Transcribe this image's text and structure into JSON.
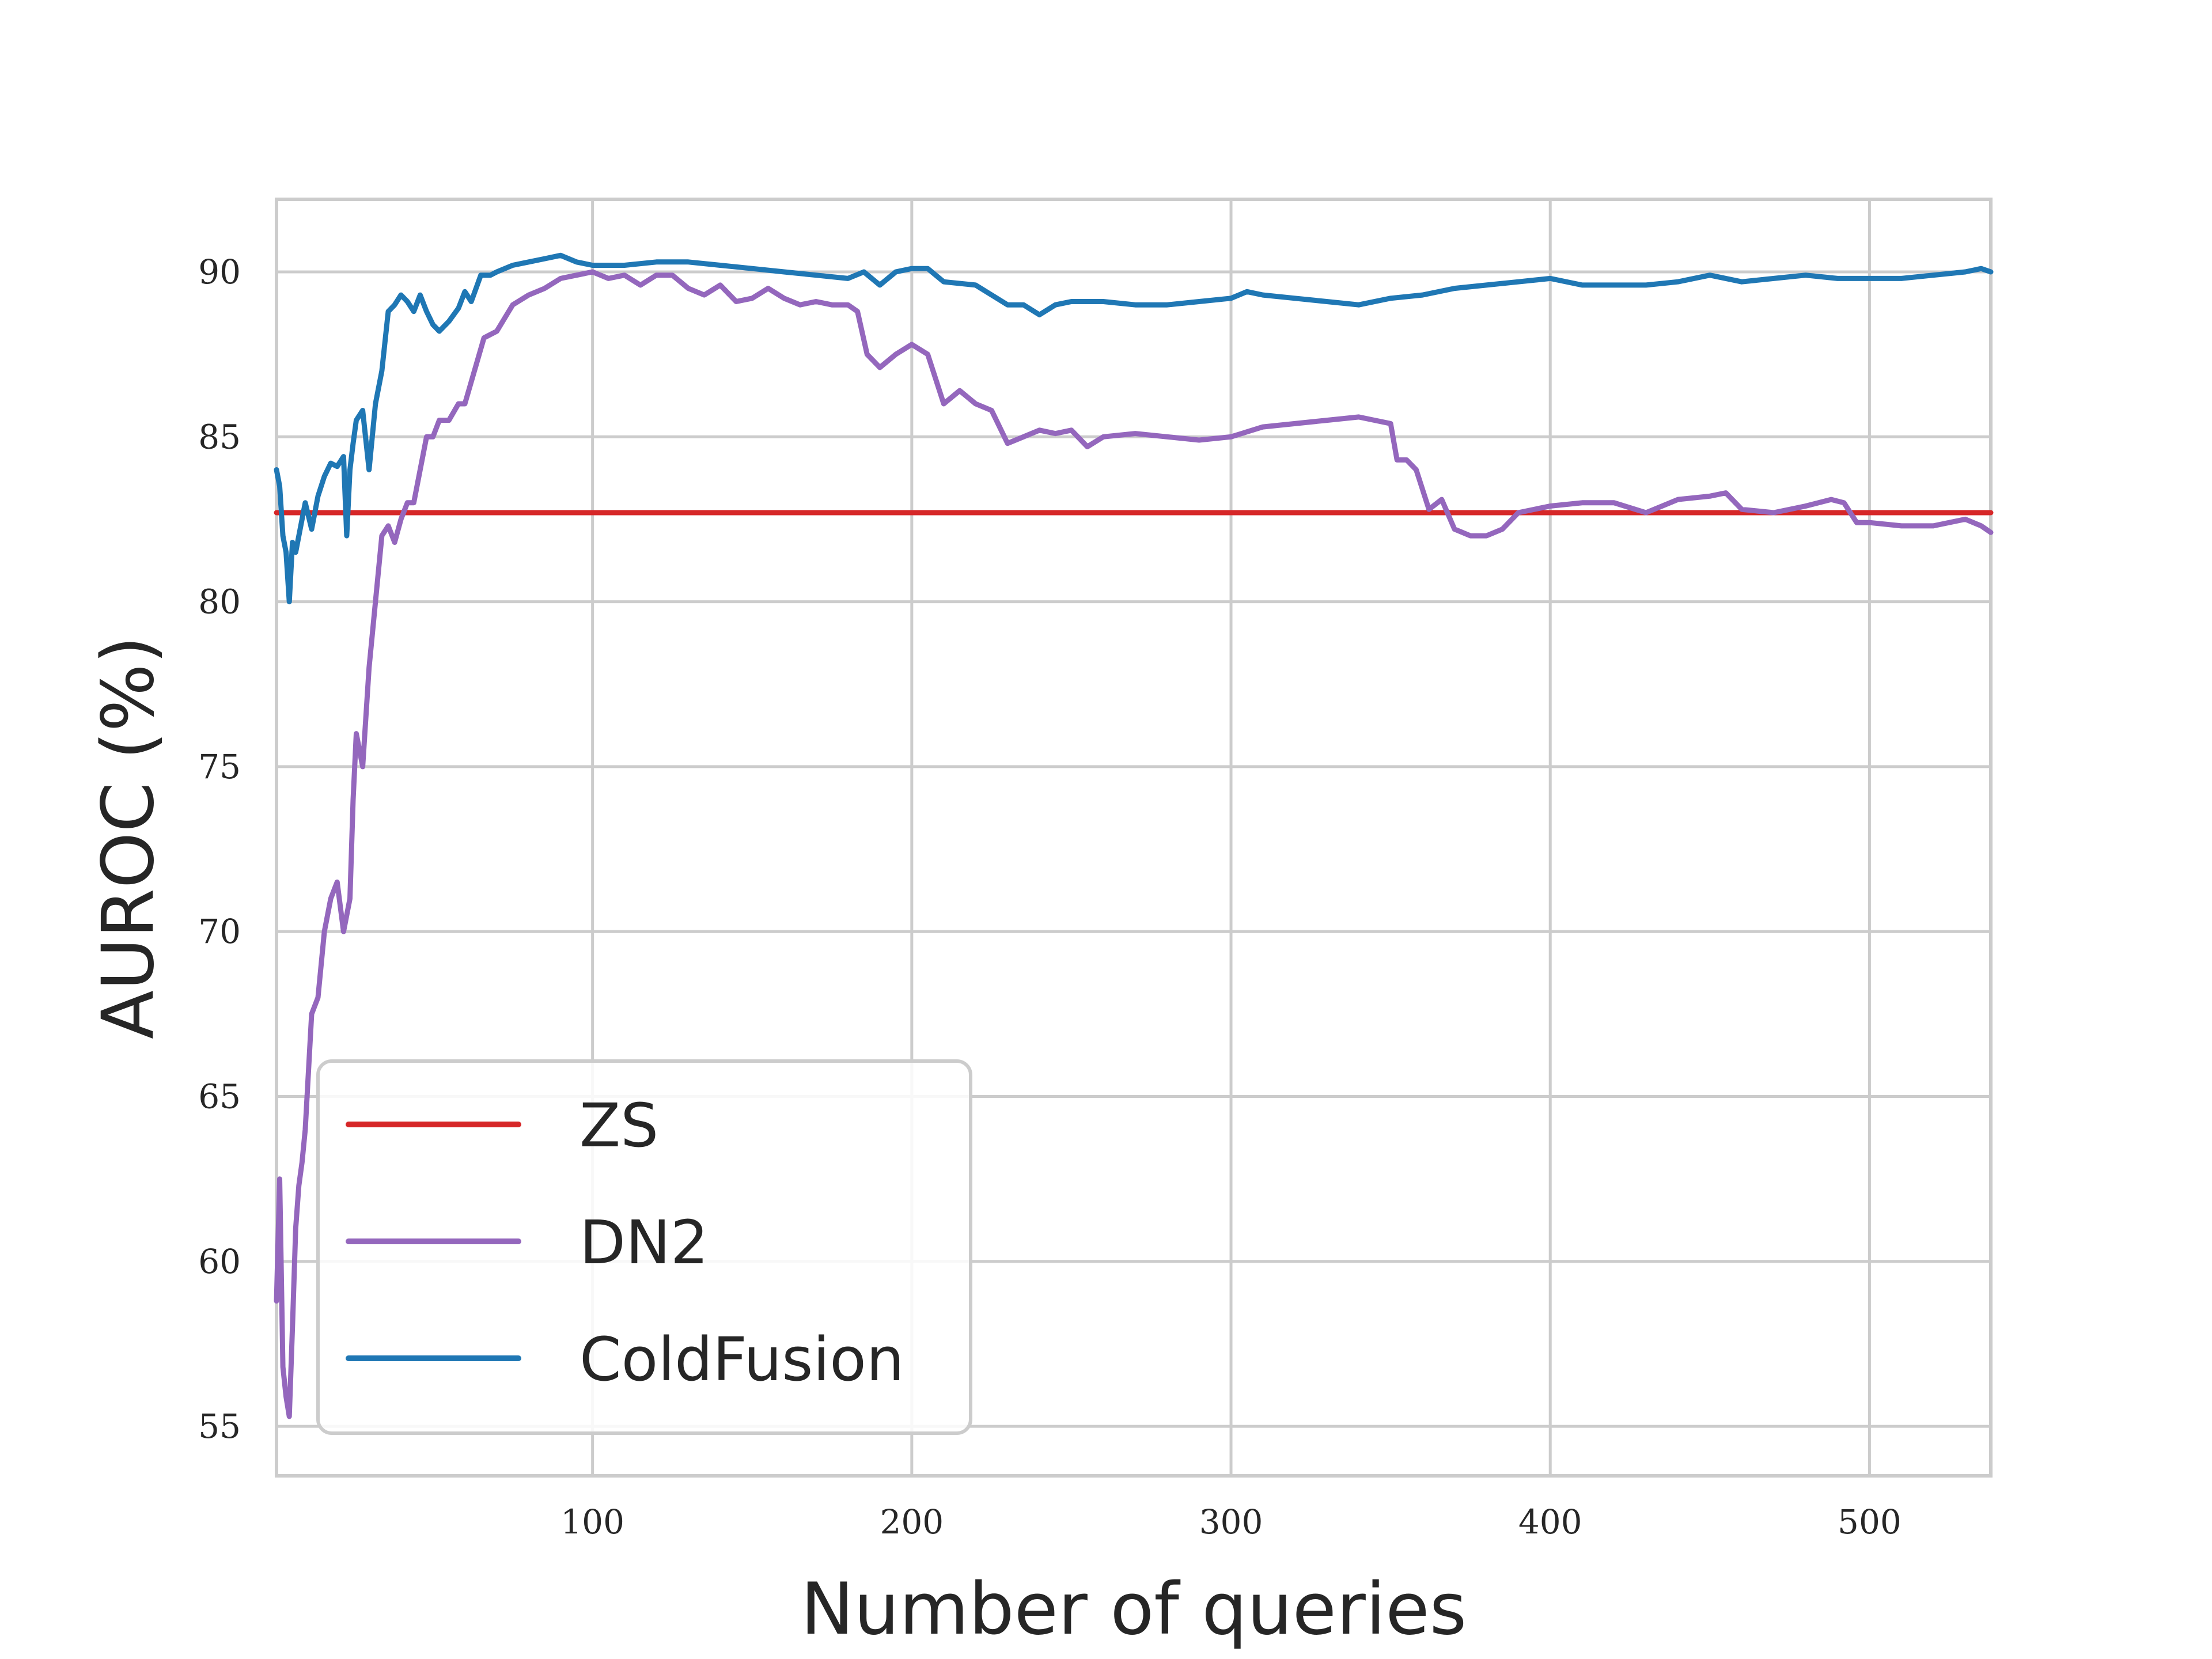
{
  "chart_data": {
    "type": "line",
    "title": "",
    "xlabel": "Number of queries",
    "ylabel": "AUROC (%)",
    "xlim": [
      1,
      538
    ],
    "ylim": [
      53.5,
      92.2
    ],
    "xticks": [
      100,
      200,
      300,
      400,
      500
    ],
    "yticks": [
      55,
      60,
      65,
      70,
      75,
      80,
      85,
      90
    ],
    "grid": true,
    "legend_position": "lower-left",
    "series": [
      {
        "name": "ZS",
        "color": "#d62728",
        "x": [
          1,
          538
        ],
        "y": [
          82.7,
          82.7
        ]
      },
      {
        "name": "DN2",
        "color": "#9467bd",
        "x": [
          1,
          2,
          3,
          4,
          5,
          6,
          7,
          8,
          9,
          10,
          12,
          14,
          16,
          18,
          20,
          22,
          24,
          25,
          26,
          28,
          30,
          32,
          34,
          36,
          38,
          40,
          42,
          44,
          46,
          48,
          50,
          52,
          55,
          58,
          60,
          63,
          66,
          70,
          75,
          80,
          85,
          90,
          95,
          100,
          105,
          110,
          115,
          120,
          125,
          130,
          135,
          140,
          145,
          150,
          155,
          160,
          165,
          170,
          175,
          180,
          183,
          186,
          190,
          195,
          200,
          205,
          210,
          215,
          220,
          225,
          230,
          235,
          240,
          245,
          250,
          255,
          260,
          270,
          280,
          290,
          300,
          310,
          320,
          330,
          340,
          345,
          350,
          352,
          355,
          358,
          362,
          366,
          370,
          375,
          380,
          385,
          390,
          400,
          410,
          420,
          430,
          440,
          450,
          455,
          460,
          470,
          480,
          488,
          492,
          496,
          500,
          510,
          520,
          530,
          535,
          538
        ],
        "y": [
          58.8,
          62.5,
          56.8,
          55.9,
          55.3,
          58,
          61,
          62.3,
          63,
          64,
          67.5,
          68,
          70,
          71,
          71.5,
          70,
          71,
          74,
          76,
          75,
          78,
          80,
          82,
          82.3,
          81.8,
          82.5,
          83,
          83,
          84,
          85,
          85,
          85.5,
          85.5,
          86,
          86,
          87,
          88,
          88.2,
          89,
          89.3,
          89.5,
          89.8,
          89.9,
          90,
          89.8,
          89.9,
          89.6,
          89.9,
          89.9,
          89.5,
          89.3,
          89.6,
          89.1,
          89.2,
          89.5,
          89.2,
          89,
          89.1,
          89,
          89,
          88.8,
          87.5,
          87.1,
          87.5,
          87.8,
          87.5,
          86,
          86.4,
          86,
          85.8,
          84.8,
          85,
          85.2,
          85.1,
          85.2,
          84.7,
          85,
          85.1,
          85,
          84.9,
          85,
          85.3,
          85.4,
          85.5,
          85.6,
          85.5,
          85.4,
          84.3,
          84.3,
          84,
          82.8,
          83.1,
          82.2,
          82,
          82,
          82.2,
          82.7,
          82.9,
          83,
          83,
          82.7,
          83.1,
          83.2,
          83.3,
          82.8,
          82.7,
          82.9,
          83.1,
          83,
          82.4,
          82.4,
          82.3,
          82.3,
          82.5,
          82.3,
          82.1
        ]
      },
      {
        "name": "ColdFusion",
        "color": "#1f77b4",
        "x": [
          1,
          2,
          3,
          4,
          5,
          6,
          7,
          8,
          10,
          12,
          14,
          16,
          18,
          20,
          22,
          23,
          24,
          25,
          26,
          28,
          30,
          32,
          34,
          36,
          38,
          40,
          42,
          44,
          46,
          48,
          50,
          52,
          55,
          58,
          60,
          62,
          65,
          68,
          70,
          75,
          80,
          85,
          90,
          95,
          100,
          110,
          120,
          130,
          140,
          150,
          160,
          170,
          180,
          185,
          190,
          195,
          200,
          205,
          210,
          220,
          225,
          230,
          235,
          240,
          245,
          250,
          260,
          270,
          280,
          290,
          300,
          305,
          310,
          320,
          330,
          340,
          350,
          360,
          370,
          380,
          390,
          400,
          410,
          420,
          430,
          440,
          450,
          460,
          470,
          480,
          490,
          500,
          510,
          520,
          530,
          535,
          538
        ],
        "y": [
          84,
          83.5,
          82,
          81.5,
          80,
          81.8,
          81.5,
          82,
          83,
          82.2,
          83.2,
          83.8,
          84.2,
          84.1,
          84.4,
          82,
          84,
          84.8,
          85.5,
          85.8,
          84,
          86,
          87,
          88.8,
          89,
          89.3,
          89.1,
          88.8,
          89.3,
          88.8,
          88.4,
          88.2,
          88.5,
          88.9,
          89.4,
          89.1,
          89.9,
          89.9,
          90,
          90.2,
          90.3,
          90.4,
          90.5,
          90.3,
          90.2,
          90.2,
          90.3,
          90.3,
          90.2,
          90.1,
          90,
          89.9,
          89.8,
          90,
          89.6,
          90,
          90.1,
          90.1,
          89.7,
          89.6,
          89.3,
          89,
          89,
          88.7,
          89,
          89.1,
          89.1,
          89,
          89,
          89.1,
          89.2,
          89.4,
          89.3,
          89.2,
          89.1,
          89,
          89.2,
          89.3,
          89.5,
          89.6,
          89.7,
          89.8,
          89.6,
          89.6,
          89.6,
          89.7,
          89.9,
          89.7,
          89.8,
          89.9,
          89.8,
          89.8,
          89.8,
          89.9,
          90,
          90.1,
          90
        ]
      }
    ]
  }
}
